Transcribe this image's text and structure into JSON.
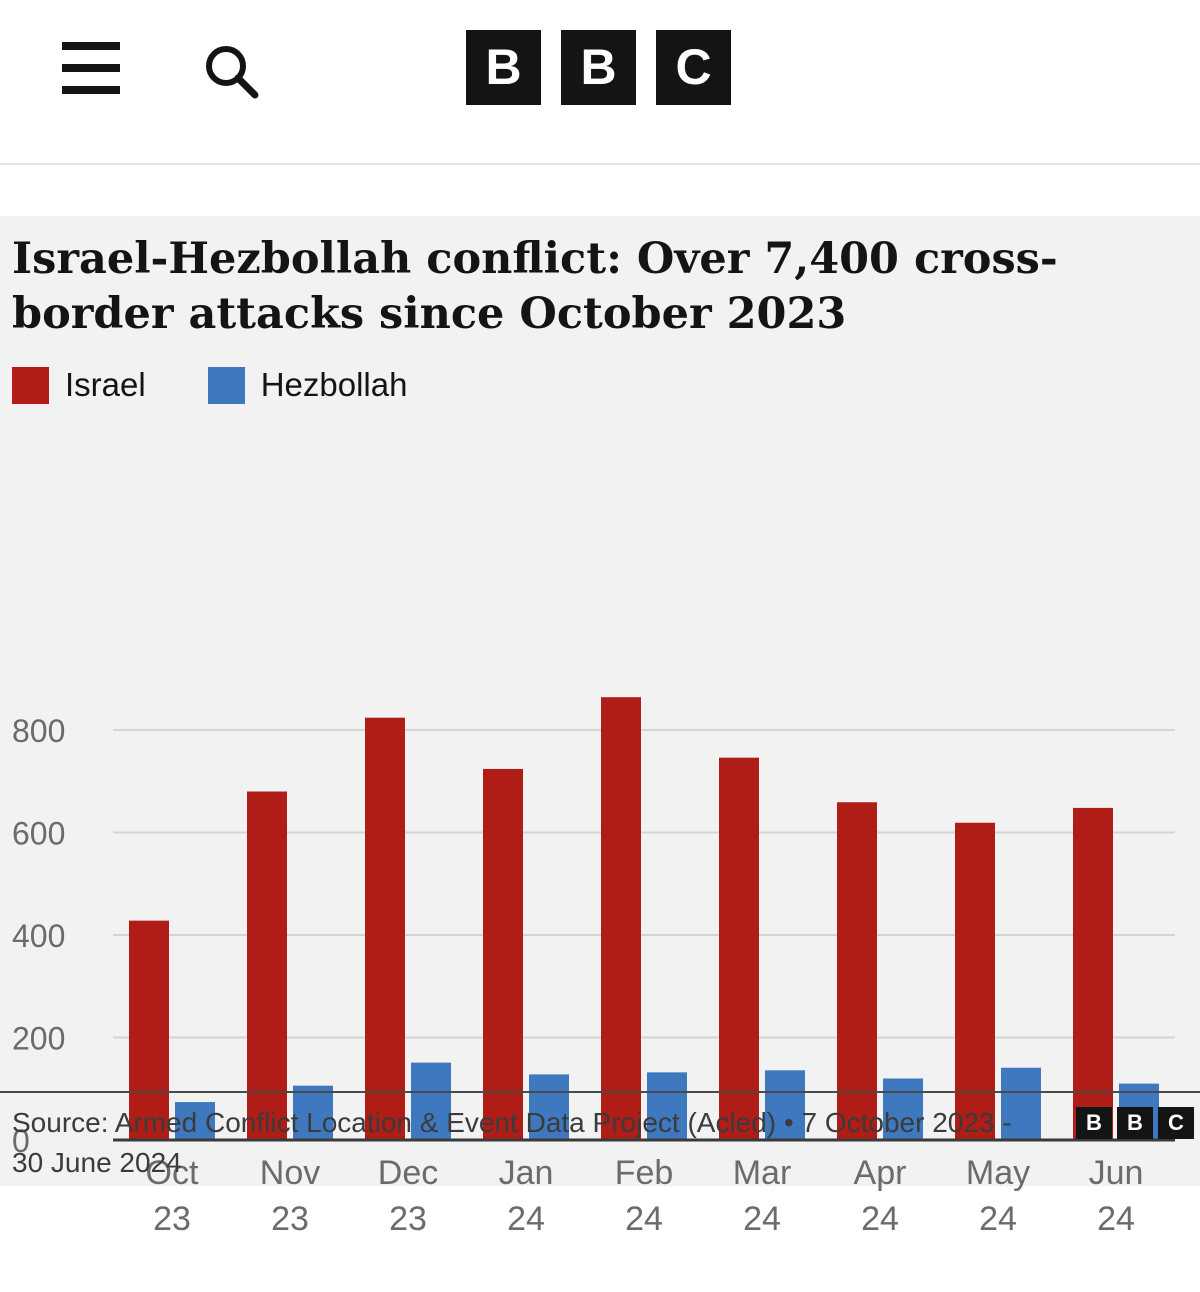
{
  "header": {
    "logo_letters": [
      "B",
      "B",
      "C"
    ],
    "menu_icon": "hamburger-menu-icon",
    "search_icon": "search-icon"
  },
  "chart": {
    "title": "Israel-Hezbollah conflict: Over 7,400 cross-border attacks since October 2023",
    "legend": [
      {
        "name": "Israel",
        "color": "#b01c16"
      },
      {
        "name": "Hezbollah",
        "color": "#3e79c0"
      }
    ],
    "source": "Source: Armed Conflict Location & Event Data Project (Acled) • 7 October 2023 - 30 June 2024",
    "source_logo_letters": [
      "B",
      "B",
      "C"
    ]
  },
  "chart_data": {
    "type": "bar",
    "title": "Israel-Hezbollah conflict: Over 7,400 cross-border attacks since October 2023",
    "xlabel": "",
    "ylabel": "",
    "ylim": [
      0,
      900
    ],
    "yticks": [
      0,
      200,
      400,
      600,
      800
    ],
    "grid": true,
    "legend_position": "top-left",
    "categories": [
      [
        "Oct",
        "23"
      ],
      [
        "Nov",
        "23"
      ],
      [
        "Dec",
        "23"
      ],
      [
        "Jan",
        "24"
      ],
      [
        "Feb",
        "24"
      ],
      [
        "Mar",
        "24"
      ],
      [
        "Apr",
        "24"
      ],
      [
        "May",
        "24"
      ],
      [
        "Jun",
        "24"
      ]
    ],
    "series": [
      {
        "name": "Israel",
        "color": "#b01c16",
        "values": [
          428,
          680,
          824,
          724,
          864,
          746,
          659,
          619,
          648
        ]
      },
      {
        "name": "Hezbollah",
        "color": "#3e79c0",
        "values": [
          74,
          106,
          151,
          128,
          132,
          136,
          120,
          141,
          110
        ]
      }
    ]
  }
}
